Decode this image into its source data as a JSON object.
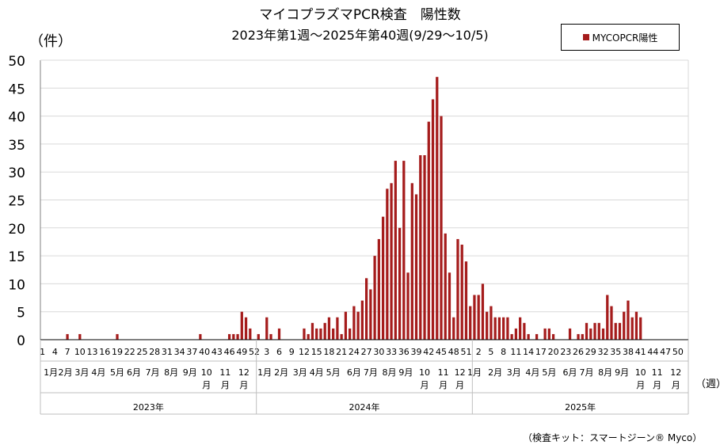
{
  "header": {
    "title": "マイコプラズマPCR検査　陽性数",
    "subtitle": "2023年第1週～2025年第40週(9/29～10/5)",
    "y_unit": "（件）",
    "x_unit": "（週）"
  },
  "legend": {
    "label": "MYCOPCR陽性"
  },
  "source": "（検査キット：スマートジーン® Myco）",
  "colors": {
    "bar": "#a51c1c",
    "grid": "#d9d9d9",
    "axis": "#808080"
  },
  "chart_data": {
    "type": "bar",
    "series": [
      {
        "name": "MYCOPCR陽性"
      }
    ],
    "ylim": [
      0,
      50
    ],
    "yticks": [
      0,
      5,
      10,
      15,
      20,
      25,
      30,
      35,
      40,
      45,
      50
    ],
    "grid": true,
    "legend_position": "top-right",
    "years": [
      {
        "label": "2023年",
        "start_week": 1,
        "weeks": 52
      },
      {
        "label": "2024年",
        "start_week": 1,
        "weeks": 52
      },
      {
        "label": "2025年",
        "start_week": 1,
        "weeks": 52
      }
    ],
    "week_tick_labels": [
      {
        "y": 0,
        "w": 1,
        "label": "1"
      },
      {
        "y": 0,
        "w": 4,
        "label": "4"
      },
      {
        "y": 0,
        "w": 7,
        "label": "7"
      },
      {
        "y": 0,
        "w": 10,
        "label": "10"
      },
      {
        "y": 0,
        "w": 13,
        "label": "13"
      },
      {
        "y": 0,
        "w": 16,
        "label": "16"
      },
      {
        "y": 0,
        "w": 19,
        "label": "19"
      },
      {
        "y": 0,
        "w": 22,
        "label": "22"
      },
      {
        "y": 0,
        "w": 25,
        "label": "25"
      },
      {
        "y": 0,
        "w": 28,
        "label": "28"
      },
      {
        "y": 0,
        "w": 31,
        "label": "31"
      },
      {
        "y": 0,
        "w": 34,
        "label": "34"
      },
      {
        "y": 0,
        "w": 37,
        "label": "37"
      },
      {
        "y": 0,
        "w": 40,
        "label": "40"
      },
      {
        "y": 0,
        "w": 43,
        "label": "43"
      },
      {
        "y": 0,
        "w": 46,
        "label": "46"
      },
      {
        "y": 0,
        "w": 49,
        "label": "49"
      },
      {
        "y": 0,
        "w": 52,
        "label": "52"
      },
      {
        "y": 1,
        "w": 3,
        "label": "3"
      },
      {
        "y": 1,
        "w": 6,
        "label": "6"
      },
      {
        "y": 1,
        "w": 9,
        "label": "9"
      },
      {
        "y": 1,
        "w": 12,
        "label": "12"
      },
      {
        "y": 1,
        "w": 15,
        "label": "15"
      },
      {
        "y": 1,
        "w": 18,
        "label": "18"
      },
      {
        "y": 1,
        "w": 21,
        "label": "21"
      },
      {
        "y": 1,
        "w": 24,
        "label": "24"
      },
      {
        "y": 1,
        "w": 27,
        "label": "27"
      },
      {
        "y": 1,
        "w": 30,
        "label": "30"
      },
      {
        "y": 1,
        "w": 33,
        "label": "33"
      },
      {
        "y": 1,
        "w": 36,
        "label": "36"
      },
      {
        "y": 1,
        "w": 39,
        "label": "39"
      },
      {
        "y": 1,
        "w": 42,
        "label": "42"
      },
      {
        "y": 1,
        "w": 45,
        "label": "45"
      },
      {
        "y": 1,
        "w": 48,
        "label": "48"
      },
      {
        "y": 1,
        "w": 51,
        "label": "51"
      },
      {
        "y": 2,
        "w": 2,
        "label": "2"
      },
      {
        "y": 2,
        "w": 5,
        "label": "5"
      },
      {
        "y": 2,
        "w": 8,
        "label": "8"
      },
      {
        "y": 2,
        "w": 11,
        "label": "11"
      },
      {
        "y": 2,
        "w": 14,
        "label": "14"
      },
      {
        "y": 2,
        "w": 17,
        "label": "17"
      },
      {
        "y": 2,
        "w": 20,
        "label": "20"
      },
      {
        "y": 2,
        "w": 23,
        "label": "23"
      },
      {
        "y": 2,
        "w": 26,
        "label": "26"
      },
      {
        "y": 2,
        "w": 29,
        "label": "29"
      },
      {
        "y": 2,
        "w": 32,
        "label": "32"
      },
      {
        "y": 2,
        "w": 35,
        "label": "35"
      },
      {
        "y": 2,
        "w": 38,
        "label": "38"
      },
      {
        "y": 2,
        "w": 41,
        "label": "41"
      },
      {
        "y": 2,
        "w": 44,
        "label": "44"
      },
      {
        "y": 2,
        "w": 47,
        "label": "47"
      },
      {
        "y": 2,
        "w": 50,
        "label": "50"
      }
    ],
    "month_labels": [
      {
        "y": 0,
        "w": 3,
        "label": "1月"
      },
      {
        "y": 0,
        "w": 6.5,
        "label": "2月"
      },
      {
        "y": 0,
        "w": 10.5,
        "label": "3月"
      },
      {
        "y": 0,
        "w": 14.5,
        "label": "4月"
      },
      {
        "y": 0,
        "w": 19,
        "label": "5月"
      },
      {
        "y": 0,
        "w": 23,
        "label": "6月"
      },
      {
        "y": 0,
        "w": 27.5,
        "label": "7月"
      },
      {
        "y": 0,
        "w": 32,
        "label": "8月"
      },
      {
        "y": 0,
        "w": 36.5,
        "label": "9月"
      },
      {
        "y": 0,
        "w": 40.5,
        "label": "10月"
      },
      {
        "y": 0,
        "w": 45,
        "label": "11月"
      },
      {
        "y": 0,
        "w": 49.5,
        "label": "12月"
      },
      {
        "y": 1,
        "w": 2.5,
        "label": "1月"
      },
      {
        "y": 1,
        "w": 6.5,
        "label": "2月"
      },
      {
        "y": 1,
        "w": 11,
        "label": "3月"
      },
      {
        "y": 1,
        "w": 15,
        "label": "4月"
      },
      {
        "y": 1,
        "w": 19,
        "label": "5月"
      },
      {
        "y": 1,
        "w": 24,
        "label": "6月"
      },
      {
        "y": 1,
        "w": 28,
        "label": "7月"
      },
      {
        "y": 1,
        "w": 32.5,
        "label": "8月"
      },
      {
        "y": 1,
        "w": 36.5,
        "label": "9月"
      },
      {
        "y": 1,
        "w": 41,
        "label": "10月"
      },
      {
        "y": 1,
        "w": 45.5,
        "label": "11月"
      },
      {
        "y": 1,
        "w": 49.5,
        "label": "12月"
      },
      {
        "y": 2,
        "w": 1,
        "label": "1月"
      },
      {
        "y": 2,
        "w": 6,
        "label": "2月"
      },
      {
        "y": 2,
        "w": 10.5,
        "label": "3月"
      },
      {
        "y": 2,
        "w": 15,
        "label": "4月"
      },
      {
        "y": 2,
        "w": 19,
        "label": "5月"
      },
      {
        "y": 2,
        "w": 24,
        "label": "6月"
      },
      {
        "y": 2,
        "w": 28,
        "label": "7月"
      },
      {
        "y": 2,
        "w": 32.5,
        "label": "8月"
      },
      {
        "y": 2,
        "w": 36.5,
        "label": "9月"
      },
      {
        "y": 2,
        "w": 41,
        "label": "10月"
      },
      {
        "y": 2,
        "w": 45,
        "label": "11月"
      },
      {
        "y": 2,
        "w": 49.5,
        "label": "12月"
      }
    ],
    "weekly_values": [
      [
        0,
        0,
        0,
        0,
        0,
        0,
        1,
        0,
        0,
        1,
        0,
        0,
        0,
        0,
        0,
        0,
        0,
        0,
        1,
        0,
        0,
        0,
        0,
        0,
        0,
        0,
        0,
        0,
        0,
        0,
        0,
        0,
        0,
        0,
        0,
        0,
        0,
        0,
        1,
        0,
        0,
        0,
        0,
        0,
        0,
        1,
        1,
        1,
        5,
        4,
        2,
        0
      ],
      [
        1,
        0,
        4,
        1,
        0,
        2,
        0,
        0,
        0,
        0,
        0,
        2,
        1,
        3,
        2,
        2,
        3,
        4,
        2,
        4,
        1,
        5,
        2,
        6,
        5,
        7,
        11,
        9,
        15,
        18,
        22,
        27,
        28,
        32,
        20,
        32,
        12,
        28,
        26,
        33,
        33,
        39,
        43,
        47,
        40,
        19,
        12,
        4,
        18,
        17,
        14,
        6
      ],
      [
        8,
        8,
        10,
        5,
        6,
        4,
        4,
        4,
        4,
        1,
        2,
        4,
        3,
        1,
        0,
        1,
        0,
        2,
        2,
        1,
        0,
        0,
        0,
        2,
        0,
        1,
        1,
        3,
        2,
        3,
        3,
        2,
        8,
        6,
        3,
        3,
        5,
        7,
        4,
        5,
        4,
        0,
        0,
        0,
        0,
        0,
        0,
        0,
        0,
        0,
        0,
        0
      ]
    ]
  }
}
